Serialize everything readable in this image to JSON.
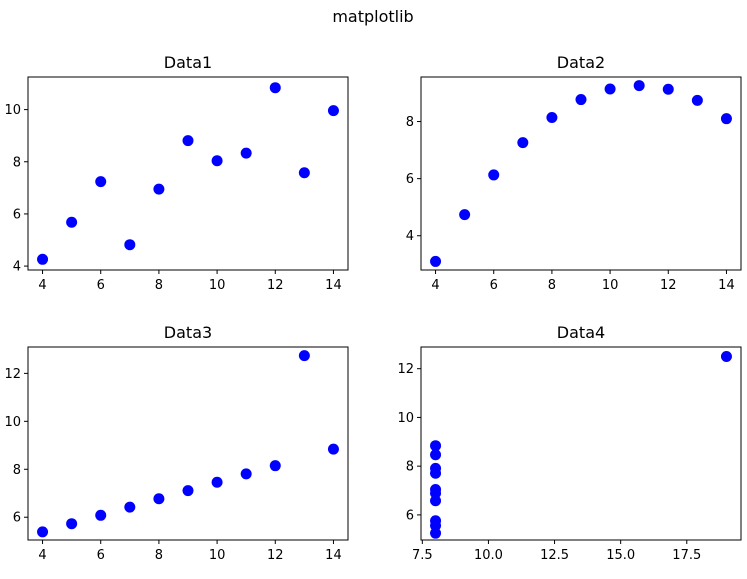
{
  "figure": {
    "title": "matplotlib"
  },
  "chart_data": [
    {
      "type": "scatter",
      "title": "Data1",
      "xlabel": "",
      "ylabel": "",
      "xlim": [
        3.5,
        14.5
      ],
      "ylim": [
        3.85,
        11.25
      ],
      "xticks": [
        4,
        6,
        8,
        10,
        12,
        14
      ],
      "xtick_labels": [
        "4",
        "6",
        "8",
        "10",
        "12",
        "14"
      ],
      "yticks": [
        4,
        6,
        8,
        10
      ],
      "ytick_labels": [
        "4",
        "6",
        "8",
        "10"
      ],
      "marker_color": "#0000ff",
      "grid": false,
      "x": [
        10,
        8,
        13,
        9,
        11,
        14,
        6,
        4,
        12,
        7,
        5
      ],
      "y": [
        8.04,
        6.95,
        7.58,
        8.81,
        8.33,
        9.96,
        7.24,
        4.26,
        10.84,
        4.82,
        5.68
      ]
    },
    {
      "type": "scatter",
      "title": "Data2",
      "xlabel": "",
      "ylabel": "",
      "xlim": [
        3.5,
        14.5
      ],
      "ylim": [
        2.8,
        9.56
      ],
      "xticks": [
        4,
        6,
        8,
        10,
        12,
        14
      ],
      "xtick_labels": [
        "4",
        "6",
        "8",
        "10",
        "12",
        "14"
      ],
      "yticks": [
        4,
        6,
        8
      ],
      "ytick_labels": [
        "4",
        "6",
        "8"
      ],
      "marker_color": "#0000ff",
      "grid": false,
      "x": [
        10,
        8,
        13,
        9,
        11,
        14,
        6,
        4,
        12,
        7,
        5
      ],
      "y": [
        9.14,
        8.14,
        8.74,
        8.77,
        9.26,
        8.1,
        6.13,
        3.1,
        9.13,
        7.26,
        4.74
      ]
    },
    {
      "type": "scatter",
      "title": "Data3",
      "xlabel": "",
      "ylabel": "",
      "xlim": [
        3.5,
        14.5
      ],
      "ylim": [
        5.05,
        13.1
      ],
      "xticks": [
        4,
        6,
        8,
        10,
        12,
        14
      ],
      "xtick_labels": [
        "4",
        "6",
        "8",
        "10",
        "12",
        "14"
      ],
      "yticks": [
        6,
        8,
        10,
        12
      ],
      "ytick_labels": [
        "6",
        "8",
        "10",
        "12"
      ],
      "marker_color": "#0000ff",
      "grid": false,
      "x": [
        10,
        8,
        13,
        9,
        11,
        14,
        6,
        4,
        12,
        7,
        5
      ],
      "y": [
        7.46,
        6.77,
        12.74,
        7.11,
        7.81,
        8.84,
        6.08,
        5.39,
        8.15,
        6.42,
        5.73
      ]
    },
    {
      "type": "scatter",
      "title": "Data4",
      "xlabel": "",
      "ylabel": "",
      "xlim": [
        7.45,
        19.55
      ],
      "ylim": [
        4.97,
        12.89
      ],
      "xticks": [
        7.5,
        10,
        12.5,
        15,
        17.5
      ],
      "xtick_labels": [
        "7.5",
        "10.0",
        "12.5",
        "15.0",
        "17.5"
      ],
      "yticks": [
        6,
        8,
        10,
        12
      ],
      "ytick_labels": [
        "6",
        "8",
        "10",
        "12"
      ],
      "marker_color": "#0000ff",
      "grid": false,
      "x": [
        8,
        8,
        8,
        8,
        8,
        8,
        8,
        19,
        8,
        8,
        8
      ],
      "y": [
        6.58,
        5.76,
        7.71,
        8.84,
        8.47,
        7.04,
        5.25,
        12.5,
        5.56,
        7.91,
        6.89
      ]
    }
  ]
}
